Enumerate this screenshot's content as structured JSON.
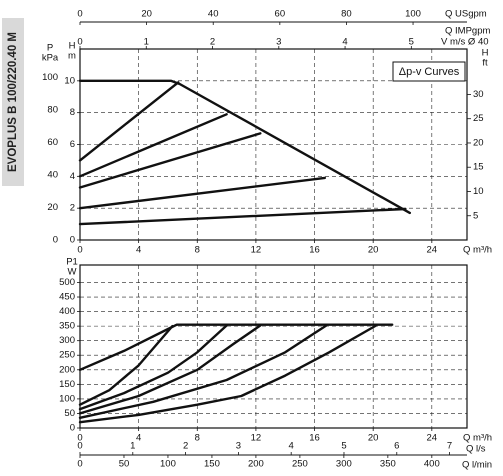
{
  "side_label": "EVOPLUS B 100/220.40 M",
  "chart_data": [
    {
      "type": "line",
      "annotation": "Δp-v Curves",
      "xlabel": "Q m³/h",
      "xlim": [
        0,
        26.4
      ],
      "xticks": [
        0,
        4,
        8,
        12,
        16,
        20,
        24
      ],
      "ylabel": [
        "H",
        "m"
      ],
      "ylim": [
        0,
        12
      ],
      "yticks": [
        0,
        2,
        4,
        6,
        8,
        10
      ],
      "y_left2": {
        "label": [
          "P",
          "kPa"
        ],
        "lim": [
          0,
          117.7
        ],
        "ticks": [
          0,
          20,
          40,
          60,
          80,
          100
        ]
      },
      "y2label": [
        "H",
        "ft"
      ],
      "y2lim": [
        0,
        39.37
      ],
      "y2ticks": [
        5,
        10,
        15,
        20,
        25,
        30
      ],
      "x_extra": [
        {
          "label": "Q USgpm",
          "lim": [
            0,
            116.2
          ],
          "ticks": [
            0,
            20,
            40,
            60,
            80,
            100
          ]
        },
        {
          "label": "Q IMPgpm"
        },
        {
          "label": "V m/s Ø 40",
          "lim": [
            0,
            5.84
          ],
          "ticks": [
            0,
            1,
            2,
            3,
            4,
            5
          ]
        }
      ],
      "grid": true,
      "series": [
        {
          "color": "#111111",
          "x": [
            0,
            5,
            6.2,
            6.8,
            22.5
          ],
          "values": [
            10,
            10,
            10,
            9.8,
            1.7
          ]
        },
        {
          "color": "#111111",
          "x": [
            0,
            6.7
          ],
          "values": [
            5,
            9.9
          ]
        },
        {
          "color": "#111111",
          "x": [
            0,
            10
          ],
          "values": [
            4,
            7.9
          ]
        },
        {
          "color": "#111111",
          "x": [
            0,
            12.3
          ],
          "values": [
            3.3,
            6.7
          ]
        },
        {
          "color": "#111111",
          "x": [
            0,
            16.7
          ],
          "values": [
            2,
            3.9
          ]
        },
        {
          "color": "#111111",
          "x": [
            0,
            22.2
          ],
          "values": [
            1,
            1.95
          ]
        }
      ]
    },
    {
      "type": "line",
      "xlabel": "Q m³/h",
      "xlim": [
        0,
        26.4
      ],
      "xticks": [
        0,
        4,
        8,
        12,
        16,
        20,
        24
      ],
      "ylabel": [
        "P1",
        "W"
      ],
      "ylim": [
        0,
        560
      ],
      "yticks": [
        0,
        50,
        100,
        150,
        200,
        250,
        300,
        350,
        400,
        450,
        500
      ],
      "x_extra": [
        {
          "label": "Q l/s",
          "lim": [
            0,
            7.33
          ],
          "ticks": [
            0,
            1,
            2,
            3,
            4,
            5,
            6,
            7
          ]
        },
        {
          "label": "Q l/min",
          "lim": [
            0,
            440
          ],
          "ticks": [
            0,
            50,
            100,
            150,
            200,
            250,
            300,
            350,
            400
          ]
        }
      ],
      "grid": true,
      "series": [
        {
          "color": "#111111",
          "x": [
            0,
            3,
            6,
            6.6,
            21.3
          ],
          "values": [
            200,
            265,
            340,
            355,
            355
          ]
        },
        {
          "color": "#111111",
          "x": [
            0,
            2,
            4,
            6.3
          ],
          "values": [
            80,
            130,
            215,
            350
          ]
        },
        {
          "color": "#111111",
          "x": [
            0,
            3,
            6,
            8,
            10
          ],
          "values": [
            65,
            120,
            190,
            260,
            352
          ]
        },
        {
          "color": "#111111",
          "x": [
            0,
            4,
            8,
            10.5,
            12.3
          ],
          "values": [
            50,
            110,
            200,
            290,
            352
          ]
        },
        {
          "color": "#111111",
          "x": [
            0,
            5,
            10,
            14,
            16.8
          ],
          "values": [
            35,
            90,
            165,
            260,
            352
          ]
        },
        {
          "color": "#111111",
          "x": [
            0,
            4,
            8,
            11,
            14,
            17,
            20.2
          ],
          "values": [
            20,
            45,
            80,
            110,
            180,
            260,
            352
          ]
        }
      ]
    }
  ]
}
